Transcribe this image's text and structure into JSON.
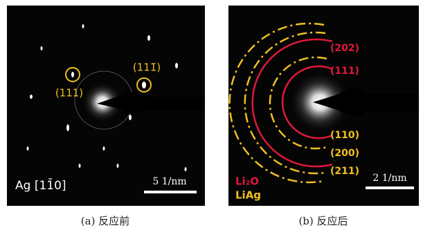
{
  "panel_a": {
    "miller_1": "(111)",
    "miller_2": "(111̄)",
    "zone": "Ag [11̄0]",
    "scale": "5 1/nm",
    "caption": "(a) 反应前"
  },
  "panel_b": {
    "labels": [
      "(202)",
      "(111)",
      "(110)",
      "(200)",
      "(211)"
    ],
    "legend": [
      "Li₂O",
      "LiAg"
    ],
    "scale": "2 1/nm",
    "caption": "(b) 反应后"
  }
}
